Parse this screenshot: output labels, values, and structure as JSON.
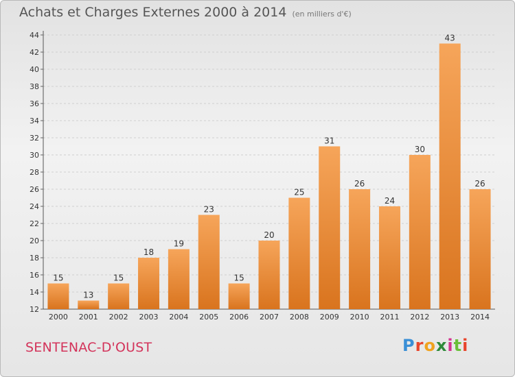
{
  "header": {
    "title": "Achats et Charges Externes 2000 à 2014",
    "unit": "(en milliers d'€)"
  },
  "footer": {
    "commune": "SENTENAC-D'OUST",
    "logo": {
      "text": "Proxiti",
      "letter_colors": [
        "#3a8fd6",
        "#e8452c",
        "#f0a21f",
        "#2f8a3a",
        "#d4348f",
        "#6bbf3a",
        "#e8452c"
      ]
    }
  },
  "colors": {
    "bar_light": "#f6a55a",
    "bar_dark": "#d9741e",
    "grid": "#cfcfcf",
    "axis_text": "#333333"
  },
  "chart_data": {
    "type": "bar",
    "title": "Achats et Charges Externes 2000 à 2014",
    "subtitle": "(en milliers d'€)",
    "categories": [
      "2000",
      "2001",
      "2002",
      "2003",
      "2004",
      "2005",
      "2006",
      "2007",
      "2008",
      "2009",
      "2010",
      "2011",
      "2012",
      "2013",
      "2014"
    ],
    "values": [
      15,
      13,
      15,
      18,
      19,
      23,
      15,
      20,
      25,
      31,
      26,
      24,
      30,
      43,
      26
    ],
    "ylim": [
      12,
      44
    ],
    "yticks": [
      12,
      14,
      16,
      18,
      20,
      22,
      24,
      26,
      28,
      30,
      32,
      34,
      36,
      38,
      40,
      42,
      44
    ],
    "grid": true,
    "data_labels": true
  }
}
